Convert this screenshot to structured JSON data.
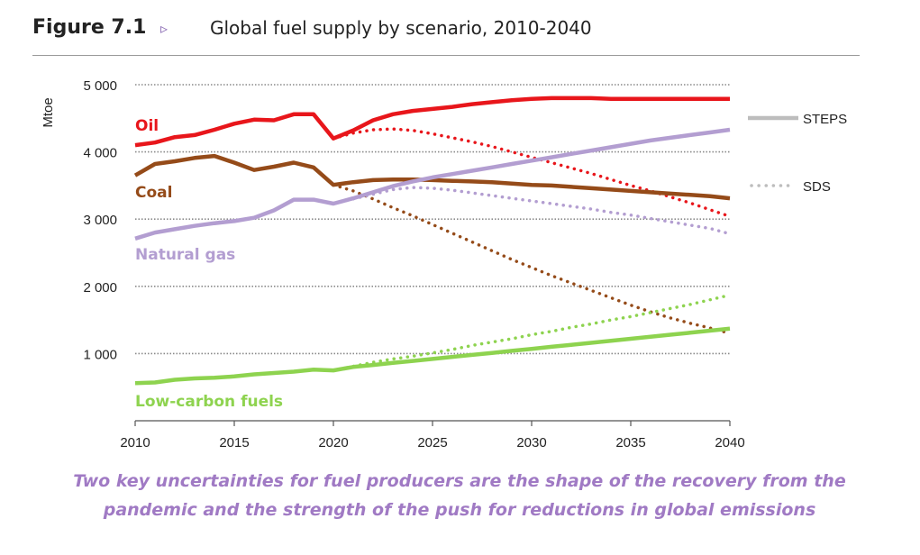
{
  "figure": {
    "number": "Figure 7.1",
    "arrow": "▹",
    "title": "Global fuel supply by scenario, 2010-2040"
  },
  "caption": {
    "line1": "Two key uncertainties for fuel producers are the shape of the recovery from the",
    "line2": "pandemic and the strength of the push for reductions in global emissions"
  },
  "chart_data": {
    "type": "line",
    "ylabel": "Mtoe",
    "xlim": [
      2010,
      2040
    ],
    "ylim": [
      0,
      5000
    ],
    "x_ticks": [
      2010,
      2015,
      2020,
      2025,
      2030,
      2035,
      2040
    ],
    "x_tick_labels": [
      "2010",
      "2015",
      "2020",
      "2025",
      "2030",
      "2035",
      "2040"
    ],
    "y_ticks": [
      1000,
      2000,
      3000,
      4000,
      5000
    ],
    "y_tick_labels": [
      "1 000",
      "2 000",
      "3 000",
      "4 000",
      "5 000"
    ],
    "grid": "horizontal dotted",
    "legend": {
      "placement": "right",
      "entries": [
        {
          "label": "STEPS",
          "style": "solid"
        },
        {
          "label": "SDS",
          "style": "dotted"
        }
      ],
      "color": "#bdbdbd"
    },
    "series": [
      {
        "name": "Oil",
        "color": "#e8161b",
        "steps": {
          "x": [
            2010,
            2011,
            2012,
            2013,
            2014,
            2015,
            2016,
            2017,
            2018,
            2019,
            2020,
            2021,
            2022,
            2023,
            2024,
            2025,
            2026,
            2027,
            2028,
            2029,
            2030,
            2031,
            2032,
            2033,
            2034,
            2035,
            2036,
            2037,
            2038,
            2039,
            2040
          ],
          "y": [
            4100,
            4140,
            4220,
            4250,
            4330,
            4420,
            4480,
            4470,
            4560,
            4560,
            4200,
            4320,
            4470,
            4560,
            4610,
            4640,
            4670,
            4710,
            4740,
            4770,
            4790,
            4800,
            4800,
            4800,
            4790,
            4790,
            4790,
            4790,
            4790,
            4790,
            4790
          ]
        },
        "sds": {
          "x": [
            2020,
            2021,
            2022,
            2023,
            2024,
            2025,
            2026,
            2027,
            2028,
            2029,
            2030,
            2031,
            2032,
            2033,
            2034,
            2035,
            2036,
            2037,
            2038,
            2039,
            2040
          ],
          "y": [
            4200,
            4280,
            4330,
            4340,
            4320,
            4270,
            4210,
            4150,
            4080,
            4000,
            3920,
            3840,
            3760,
            3680,
            3590,
            3500,
            3420,
            3330,
            3240,
            3140,
            3040
          ]
        }
      },
      {
        "name": "Coal",
        "color": "#954b19",
        "steps": {
          "x": [
            2010,
            2011,
            2012,
            2013,
            2014,
            2015,
            2016,
            2017,
            2018,
            2019,
            2020,
            2021,
            2022,
            2023,
            2024,
            2025,
            2026,
            2027,
            2028,
            2029,
            2030,
            2031,
            2032,
            2033,
            2034,
            2035,
            2036,
            2037,
            2038,
            2039,
            2040
          ],
          "y": [
            3650,
            3820,
            3860,
            3910,
            3940,
            3840,
            3730,
            3780,
            3840,
            3770,
            3510,
            3550,
            3580,
            3590,
            3590,
            3580,
            3570,
            3560,
            3550,
            3530,
            3510,
            3500,
            3480,
            3460,
            3440,
            3420,
            3400,
            3380,
            3360,
            3340,
            3310
          ]
        },
        "sds": {
          "x": [
            2020,
            2021,
            2022,
            2023,
            2024,
            2025,
            2026,
            2027,
            2028,
            2029,
            2030,
            2031,
            2032,
            2033,
            2034,
            2035,
            2036,
            2037,
            2038,
            2039,
            2040
          ],
          "y": [
            3510,
            3420,
            3300,
            3170,
            3050,
            2920,
            2790,
            2660,
            2530,
            2400,
            2280,
            2160,
            2050,
            1940,
            1830,
            1720,
            1620,
            1530,
            1450,
            1380,
            1300
          ]
        }
      },
      {
        "name": "Natural gas",
        "color": "#b39ed1",
        "steps": {
          "x": [
            2010,
            2011,
            2012,
            2013,
            2014,
            2015,
            2016,
            2017,
            2018,
            2019,
            2020,
            2021,
            2022,
            2023,
            2024,
            2025,
            2026,
            2027,
            2028,
            2029,
            2030,
            2031,
            2032,
            2033,
            2034,
            2035,
            2036,
            2037,
            2038,
            2039,
            2040
          ],
          "y": [
            2710,
            2800,
            2850,
            2900,
            2940,
            2970,
            3020,
            3130,
            3290,
            3290,
            3230,
            3310,
            3400,
            3490,
            3560,
            3620,
            3670,
            3720,
            3770,
            3820,
            3870,
            3920,
            3970,
            4020,
            4070,
            4120,
            4170,
            4210,
            4250,
            4290,
            4330
          ]
        },
        "sds": {
          "x": [
            2020,
            2021,
            2022,
            2023,
            2024,
            2025,
            2026,
            2027,
            2028,
            2029,
            2030,
            2031,
            2032,
            2033,
            2034,
            2035,
            2036,
            2037,
            2038,
            2039,
            2040
          ],
          "y": [
            3230,
            3300,
            3370,
            3440,
            3470,
            3460,
            3430,
            3390,
            3350,
            3310,
            3270,
            3230,
            3190,
            3150,
            3100,
            3060,
            3010,
            2960,
            2910,
            2860,
            2780
          ]
        }
      },
      {
        "name": "Low-carbon fuels",
        "color": "#8ed34f",
        "steps": {
          "x": [
            2010,
            2011,
            2012,
            2013,
            2014,
            2015,
            2016,
            2017,
            2018,
            2019,
            2020,
            2021,
            2022,
            2023,
            2024,
            2025,
            2026,
            2027,
            2028,
            2029,
            2030,
            2031,
            2032,
            2033,
            2034,
            2035,
            2036,
            2037,
            2038,
            2039,
            2040
          ],
          "y": [
            560,
            570,
            610,
            630,
            640,
            660,
            690,
            710,
            730,
            760,
            750,
            800,
            830,
            860,
            890,
            920,
            950,
            980,
            1010,
            1040,
            1070,
            1100,
            1130,
            1160,
            1190,
            1220,
            1250,
            1280,
            1310,
            1340,
            1370
          ]
        },
        "sds": {
          "x": [
            2020,
            2021,
            2022,
            2023,
            2024,
            2025,
            2026,
            2027,
            2028,
            2029,
            2030,
            2031,
            2032,
            2033,
            2034,
            2035,
            2036,
            2037,
            2038,
            2039,
            2040
          ],
          "y": [
            750,
            810,
            870,
            920,
            960,
            1010,
            1060,
            1120,
            1170,
            1220,
            1280,
            1330,
            1390,
            1440,
            1500,
            1550,
            1610,
            1670,
            1730,
            1800,
            1870
          ]
        }
      }
    ]
  }
}
